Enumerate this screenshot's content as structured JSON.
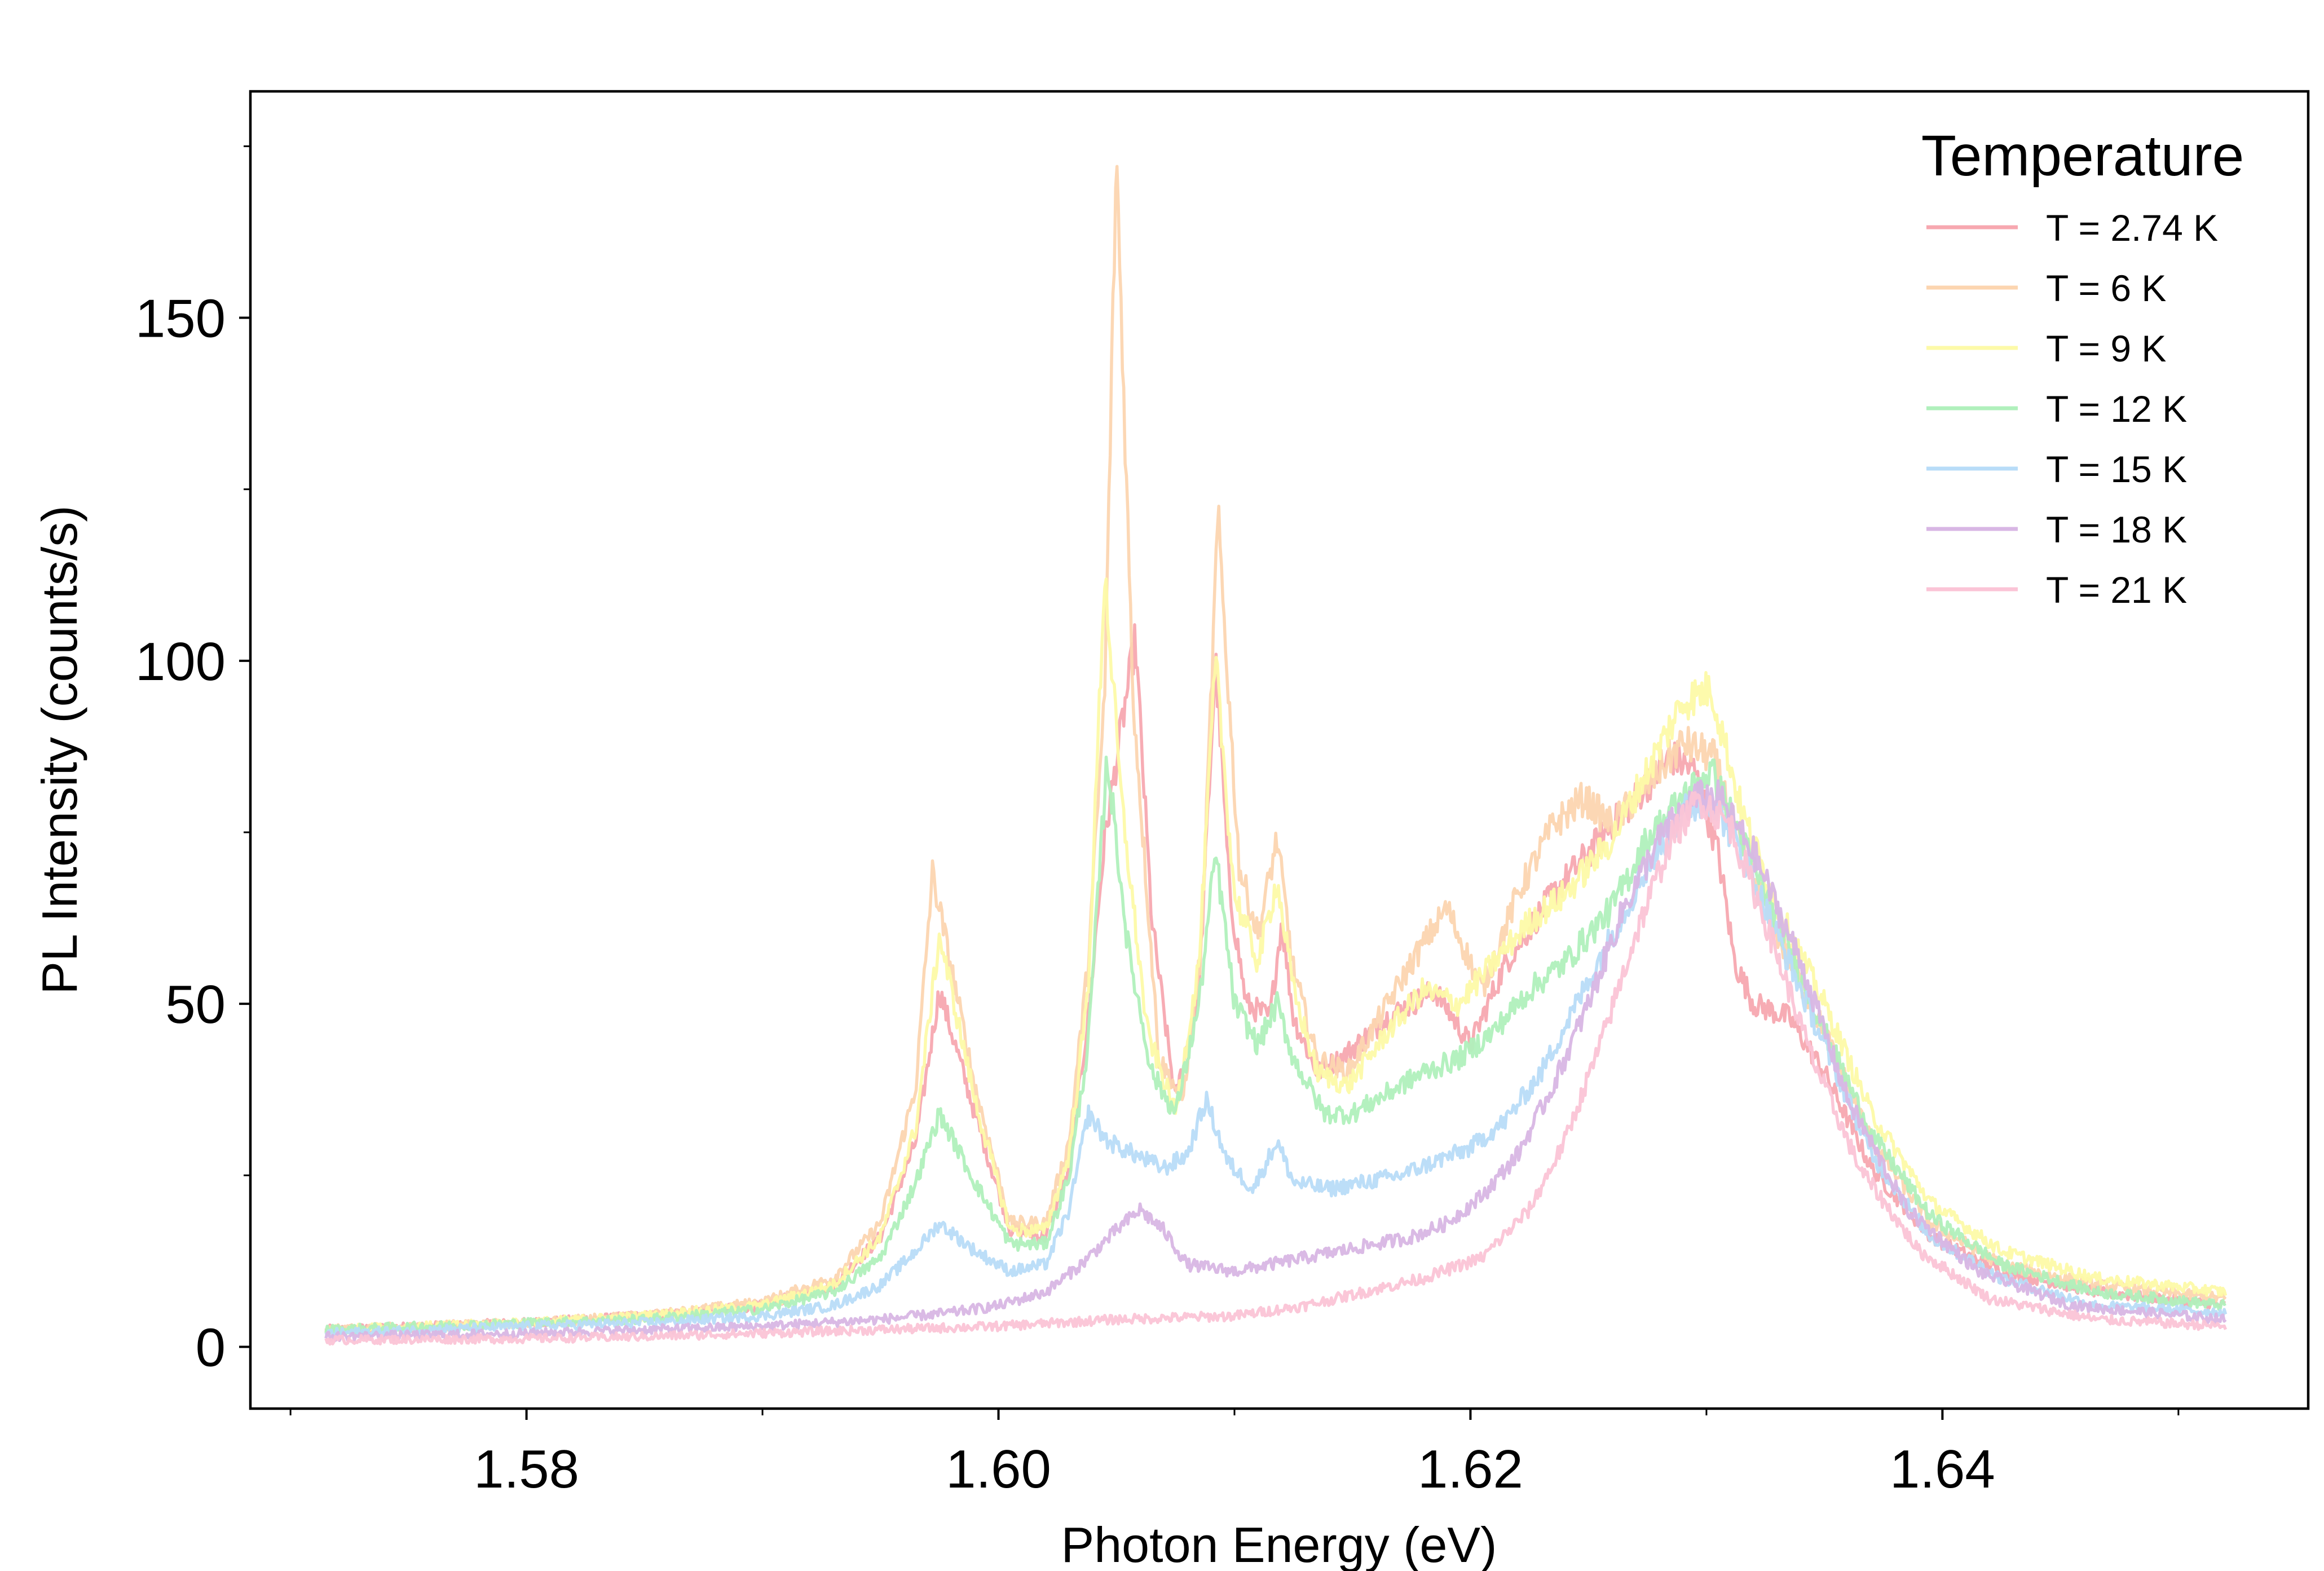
{
  "chart_data": {
    "type": "line",
    "title": "",
    "xlabel": "Photon Energy (eV)",
    "ylabel": "PL Intensity (counts/s)",
    "xlim": [
      1.5683,
      1.6555
    ],
    "ylim": [
      -9,
      183
    ],
    "x_major_ticks": [
      1.58,
      1.6,
      1.62,
      1.64
    ],
    "x_major_tick_labels": [
      "1.58",
      "1.60",
      "1.62",
      "1.64"
    ],
    "x_minor_ticks": [
      1.57,
      1.59,
      1.61,
      1.63,
      1.65
    ],
    "y_major_ticks": [
      0,
      50,
      100,
      150
    ],
    "y_major_tick_labels": [
      "0",
      "50",
      "100",
      "150"
    ],
    "y_minor_ticks": [
      25,
      75,
      125,
      175
    ],
    "grid": false,
    "legend": {
      "title": "Temperature",
      "placement": "top-right"
    },
    "series": [
      {
        "name": "T = 2.74 K",
        "color": "#f7a8b0",
        "points": [
          [
            1.5715,
            2.5
          ],
          [
            1.58,
            3.5
          ],
          [
            1.585,
            4.5
          ],
          [
            1.59,
            6
          ],
          [
            1.593,
            9
          ],
          [
            1.595,
            16
          ],
          [
            1.5965,
            30
          ],
          [
            1.5975,
            52
          ],
          [
            1.599,
            34
          ],
          [
            1.6005,
            17
          ],
          [
            1.602,
            16
          ],
          [
            1.603,
            26
          ],
          [
            1.6038,
            48
          ],
          [
            1.6045,
            74
          ],
          [
            1.6052,
            90
          ],
          [
            1.6058,
            103
          ],
          [
            1.6065,
            62
          ],
          [
            1.6075,
            36
          ],
          [
            1.6085,
            52
          ],
          [
            1.6092,
            100
          ],
          [
            1.6098,
            66
          ],
          [
            1.6105,
            50
          ],
          [
            1.6115,
            48
          ],
          [
            1.612,
            62
          ],
          [
            1.6125,
            48
          ],
          [
            1.6135,
            40
          ],
          [
            1.6145,
            42
          ],
          [
            1.6165,
            48
          ],
          [
            1.6185,
            52
          ],
          [
            1.62,
            44
          ],
          [
            1.6215,
            56
          ],
          [
            1.6235,
            66
          ],
          [
            1.6255,
            74
          ],
          [
            1.627,
            80
          ],
          [
            1.6285,
            86
          ],
          [
            1.6295,
            84
          ],
          [
            1.6305,
            72
          ],
          [
            1.6312,
            56
          ],
          [
            1.632,
            50
          ],
          [
            1.6335,
            48
          ],
          [
            1.635,
            40
          ],
          [
            1.637,
            26
          ],
          [
            1.6395,
            16
          ],
          [
            1.6425,
            11
          ],
          [
            1.6465,
            8
          ],
          [
            1.652,
            6
          ]
        ]
      },
      {
        "name": "T = 6 K",
        "color": "#fcd5b0",
        "points": [
          [
            1.5715,
            2.5
          ],
          [
            1.58,
            3.5
          ],
          [
            1.585,
            4.5
          ],
          [
            1.59,
            6.5
          ],
          [
            1.593,
            10
          ],
          [
            1.595,
            18
          ],
          [
            1.5965,
            38
          ],
          [
            1.5972,
            69
          ],
          [
            1.599,
            38
          ],
          [
            1.6005,
            18
          ],
          [
            1.602,
            18
          ],
          [
            1.603,
            30
          ],
          [
            1.6038,
            56
          ],
          [
            1.6045,
            95
          ],
          [
            1.605,
            174
          ],
          [
            1.6057,
            95
          ],
          [
            1.6068,
            42
          ],
          [
            1.6078,
            36
          ],
          [
            1.6086,
            58
          ],
          [
            1.6093,
            121
          ],
          [
            1.6102,
            70
          ],
          [
            1.611,
            60
          ],
          [
            1.6118,
            74
          ],
          [
            1.6125,
            55
          ],
          [
            1.6135,
            42
          ],
          [
            1.6148,
            40
          ],
          [
            1.6165,
            50
          ],
          [
            1.6175,
            56
          ],
          [
            1.619,
            64
          ],
          [
            1.6205,
            52
          ],
          [
            1.622,
            66
          ],
          [
            1.6235,
            76
          ],
          [
            1.6248,
            80
          ],
          [
            1.626,
            76
          ],
          [
            1.6275,
            82
          ],
          [
            1.629,
            88
          ],
          [
            1.6303,
            86
          ],
          [
            1.6315,
            72
          ],
          [
            1.633,
            60
          ],
          [
            1.635,
            46
          ],
          [
            1.637,
            30
          ],
          [
            1.6395,
            18
          ],
          [
            1.6425,
            12
          ],
          [
            1.6465,
            9
          ],
          [
            1.652,
            7
          ]
        ]
      },
      {
        "name": "T = 9 K",
        "color": "#fdfaa8",
        "points": [
          [
            1.5715,
            2.5
          ],
          [
            1.58,
            3.5
          ],
          [
            1.585,
            4.5
          ],
          [
            1.59,
            6
          ],
          [
            1.593,
            9
          ],
          [
            1.595,
            16
          ],
          [
            1.5965,
            32
          ],
          [
            1.5975,
            60
          ],
          [
            1.599,
            36
          ],
          [
            1.6005,
            17
          ],
          [
            1.602,
            17
          ],
          [
            1.603,
            28
          ],
          [
            1.6038,
            52
          ],
          [
            1.6045,
            113
          ],
          [
            1.6052,
            80
          ],
          [
            1.6063,
            46
          ],
          [
            1.6075,
            34
          ],
          [
            1.6085,
            56
          ],
          [
            1.6092,
            100
          ],
          [
            1.61,
            66
          ],
          [
            1.611,
            56
          ],
          [
            1.6118,
            68
          ],
          [
            1.6125,
            52
          ],
          [
            1.6135,
            40
          ],
          [
            1.6148,
            38
          ],
          [
            1.6165,
            46
          ],
          [
            1.618,
            52
          ],
          [
            1.6195,
            50
          ],
          [
            1.621,
            56
          ],
          [
            1.6225,
            62
          ],
          [
            1.624,
            66
          ],
          [
            1.626,
            74
          ],
          [
            1.6275,
            84
          ],
          [
            1.629,
            94
          ],
          [
            1.6302,
            96
          ],
          [
            1.6315,
            78
          ],
          [
            1.633,
            64
          ],
          [
            1.635,
            50
          ],
          [
            1.637,
            34
          ],
          [
            1.6395,
            21
          ],
          [
            1.6425,
            14
          ],
          [
            1.6465,
            10
          ],
          [
            1.652,
            8
          ]
        ]
      },
      {
        "name": "T = 12 K",
        "color": "#b0f0bc",
        "points": [
          [
            1.5715,
            2.5
          ],
          [
            1.58,
            3.5
          ],
          [
            1.585,
            4
          ],
          [
            1.59,
            5.5
          ],
          [
            1.593,
            8
          ],
          [
            1.595,
            13
          ],
          [
            1.5965,
            24
          ],
          [
            1.5975,
            34
          ],
          [
            1.599,
            24
          ],
          [
            1.6005,
            15
          ],
          [
            1.602,
            15
          ],
          [
            1.603,
            25
          ],
          [
            1.6038,
            44
          ],
          [
            1.6046,
            86
          ],
          [
            1.6055,
            58
          ],
          [
            1.6065,
            40
          ],
          [
            1.6075,
            34
          ],
          [
            1.6085,
            50
          ],
          [
            1.6092,
            72
          ],
          [
            1.61,
            50
          ],
          [
            1.611,
            44
          ],
          [
            1.6118,
            50
          ],
          [
            1.6125,
            42
          ],
          [
            1.6138,
            34
          ],
          [
            1.615,
            34
          ],
          [
            1.6165,
            37
          ],
          [
            1.618,
            40
          ],
          [
            1.6195,
            42
          ],
          [
            1.621,
            46
          ],
          [
            1.6225,
            52
          ],
          [
            1.624,
            56
          ],
          [
            1.626,
            64
          ],
          [
            1.6275,
            74
          ],
          [
            1.629,
            80
          ],
          [
            1.6302,
            84
          ],
          [
            1.6315,
            74
          ],
          [
            1.633,
            62
          ],
          [
            1.635,
            46
          ],
          [
            1.637,
            31
          ],
          [
            1.6395,
            19
          ],
          [
            1.6425,
            12
          ],
          [
            1.6465,
            8
          ],
          [
            1.652,
            6
          ]
        ]
      },
      {
        "name": "T = 15 K",
        "color": "#b8dcf8",
        "points": [
          [
            1.5715,
            2
          ],
          [
            1.58,
            3
          ],
          [
            1.585,
            3.5
          ],
          [
            1.59,
            4.5
          ],
          [
            1.593,
            6
          ],
          [
            1.595,
            9
          ],
          [
            1.5965,
            14
          ],
          [
            1.5975,
            18
          ],
          [
            1.599,
            14
          ],
          [
            1.6005,
            11
          ],
          [
            1.602,
            12
          ],
          [
            1.603,
            20
          ],
          [
            1.6038,
            34
          ],
          [
            1.6046,
            30
          ],
          [
            1.6058,
            28
          ],
          [
            1.607,
            26
          ],
          [
            1.608,
            28
          ],
          [
            1.6088,
            36
          ],
          [
            1.6097,
            27
          ],
          [
            1.6108,
            23
          ],
          [
            1.6118,
            30
          ],
          [
            1.6125,
            24
          ],
          [
            1.614,
            23
          ],
          [
            1.6155,
            24
          ],
          [
            1.617,
            25
          ],
          [
            1.6185,
            27
          ],
          [
            1.62,
            29
          ],
          [
            1.6215,
            33
          ],
          [
            1.623,
            40
          ],
          [
            1.6245,
            50
          ],
          [
            1.626,
            60
          ],
          [
            1.6275,
            70
          ],
          [
            1.629,
            78
          ],
          [
            1.6302,
            80
          ],
          [
            1.6315,
            72
          ],
          [
            1.633,
            60
          ],
          [
            1.635,
            44
          ],
          [
            1.637,
            28
          ],
          [
            1.6395,
            16
          ],
          [
            1.6425,
            10
          ],
          [
            1.6465,
            6
          ],
          [
            1.652,
            5
          ]
        ]
      },
      {
        "name": "T = 18 K",
        "color": "#d8b6e4",
        "points": [
          [
            1.5715,
            1.5
          ],
          [
            1.58,
            2
          ],
          [
            1.585,
            2.5
          ],
          [
            1.59,
            3
          ],
          [
            1.595,
            4
          ],
          [
            1.598,
            5
          ],
          [
            1.6,
            6
          ],
          [
            1.602,
            8
          ],
          [
            1.6035,
            12
          ],
          [
            1.605,
            17
          ],
          [
            1.606,
            20
          ],
          [
            1.607,
            17
          ],
          [
            1.608,
            12
          ],
          [
            1.61,
            11
          ],
          [
            1.6115,
            12
          ],
          [
            1.613,
            13
          ],
          [
            1.6145,
            14
          ],
          [
            1.616,
            15
          ],
          [
            1.6175,
            16
          ],
          [
            1.619,
            18
          ],
          [
            1.6205,
            22
          ],
          [
            1.622,
            28
          ],
          [
            1.6235,
            38
          ],
          [
            1.625,
            50
          ],
          [
            1.6265,
            64
          ],
          [
            1.628,
            74
          ],
          [
            1.6295,
            80
          ],
          [
            1.6305,
            80
          ],
          [
            1.632,
            72
          ],
          [
            1.634,
            56
          ],
          [
            1.636,
            36
          ],
          [
            1.6385,
            20
          ],
          [
            1.6415,
            11
          ],
          [
            1.6455,
            6
          ],
          [
            1.652,
            4
          ]
        ]
      },
      {
        "name": "T = 21 K",
        "color": "#fbc4d6",
        "points": [
          [
            1.5715,
            1
          ],
          [
            1.58,
            1.2
          ],
          [
            1.585,
            1.5
          ],
          [
            1.59,
            2
          ],
          [
            1.595,
            2.5
          ],
          [
            1.6,
            3
          ],
          [
            1.605,
            4
          ],
          [
            1.61,
            4.5
          ],
          [
            1.613,
            6
          ],
          [
            1.6155,
            8
          ],
          [
            1.618,
            10
          ],
          [
            1.6205,
            13
          ],
          [
            1.6225,
            20
          ],
          [
            1.624,
            30
          ],
          [
            1.6255,
            44
          ],
          [
            1.627,
            60
          ],
          [
            1.6285,
            74
          ],
          [
            1.6297,
            80
          ],
          [
            1.631,
            76
          ],
          [
            1.6325,
            62
          ],
          [
            1.6345,
            42
          ],
          [
            1.6365,
            26
          ],
          [
            1.639,
            14
          ],
          [
            1.642,
            7
          ],
          [
            1.6465,
            4
          ],
          [
            1.652,
            3
          ]
        ]
      }
    ]
  }
}
